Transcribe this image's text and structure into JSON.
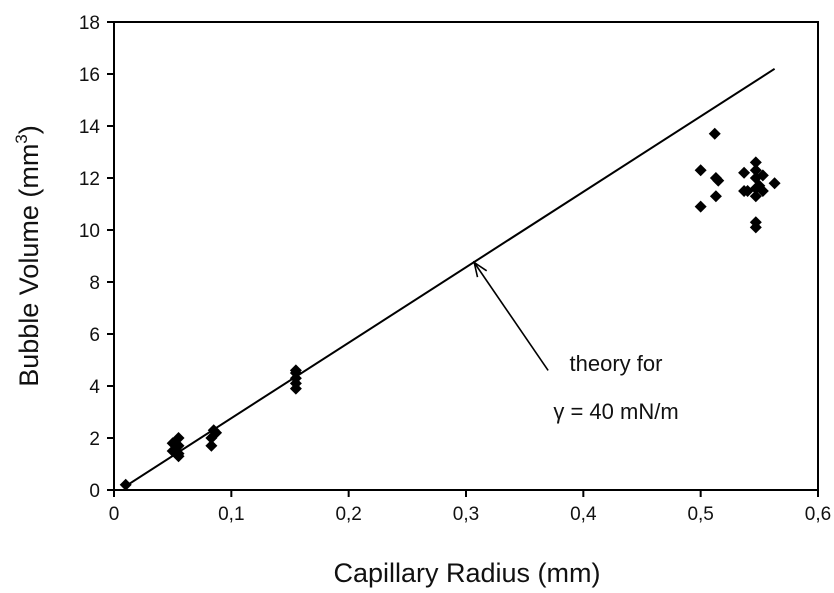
{
  "chart_data": {
    "type": "scatter",
    "xlabel": "Capillary Radius (mm)",
    "ylabel": "Bubble Volume (mm",
    "ylabel_superscript": "3",
    "ylabel_suffix": ")",
    "xlim": [
      0,
      0.6
    ],
    "ylim": [
      0,
      18
    ],
    "x_ticks": [
      0,
      0.1,
      0.2,
      0.3,
      0.4,
      0.5,
      0.6
    ],
    "x_tick_labels": [
      "0",
      "0,1",
      "0,2",
      "0,3",
      "0,4",
      "0,5",
      "0,6"
    ],
    "y_ticks": [
      0,
      2,
      4,
      6,
      8,
      10,
      12,
      14,
      16,
      18
    ],
    "y_tick_labels": [
      "0",
      "2",
      "4",
      "6",
      "8",
      "10",
      "12",
      "14",
      "16",
      "18"
    ],
    "grid": false,
    "legend": false,
    "marker": "diamond",
    "point_color": "#000000",
    "points": [
      {
        "x": 0.01,
        "y": 0.2
      },
      {
        "x": 0.05,
        "y": 1.8
      },
      {
        "x": 0.05,
        "y": 1.5
      },
      {
        "x": 0.055,
        "y": 2.0
      },
      {
        "x": 0.055,
        "y": 1.7
      },
      {
        "x": 0.055,
        "y": 1.4
      },
      {
        "x": 0.055,
        "y": 1.3
      },
      {
        "x": 0.083,
        "y": 1.7
      },
      {
        "x": 0.083,
        "y": 2.0
      },
      {
        "x": 0.085,
        "y": 2.3
      },
      {
        "x": 0.087,
        "y": 2.2
      },
      {
        "x": 0.155,
        "y": 3.9
      },
      {
        "x": 0.155,
        "y": 4.1
      },
      {
        "x": 0.155,
        "y": 4.3
      },
      {
        "x": 0.155,
        "y": 4.5
      },
      {
        "x": 0.155,
        "y": 4.6
      },
      {
        "x": 0.5,
        "y": 12.3
      },
      {
        "x": 0.5,
        "y": 10.9
      },
      {
        "x": 0.512,
        "y": 13.7
      },
      {
        "x": 0.513,
        "y": 12.0
      },
      {
        "x": 0.513,
        "y": 11.3
      },
      {
        "x": 0.515,
        "y": 11.9
      },
      {
        "x": 0.537,
        "y": 12.2
      },
      {
        "x": 0.537,
        "y": 11.5
      },
      {
        "x": 0.54,
        "y": 11.5
      },
      {
        "x": 0.547,
        "y": 12.6
      },
      {
        "x": 0.547,
        "y": 12.3
      },
      {
        "x": 0.547,
        "y": 12.0
      },
      {
        "x": 0.547,
        "y": 11.6
      },
      {
        "x": 0.547,
        "y": 11.3
      },
      {
        "x": 0.547,
        "y": 10.3
      },
      {
        "x": 0.547,
        "y": 10.1
      },
      {
        "x": 0.55,
        "y": 11.7
      },
      {
        "x": 0.553,
        "y": 11.5
      },
      {
        "x": 0.553,
        "y": 12.1
      },
      {
        "x": 0.563,
        "y": 11.8
      }
    ],
    "theory_line": {
      "x": [
        0.01,
        0.563
      ],
      "y": [
        0.15,
        16.2
      ]
    },
    "annotation": {
      "line1": "theory for",
      "line2": "γ = 40 mN/m",
      "arrow_to": {
        "x": 0.307,
        "y": 8.75
      },
      "arrow_from": {
        "x": 0.37,
        "y": 4.6
      }
    }
  }
}
